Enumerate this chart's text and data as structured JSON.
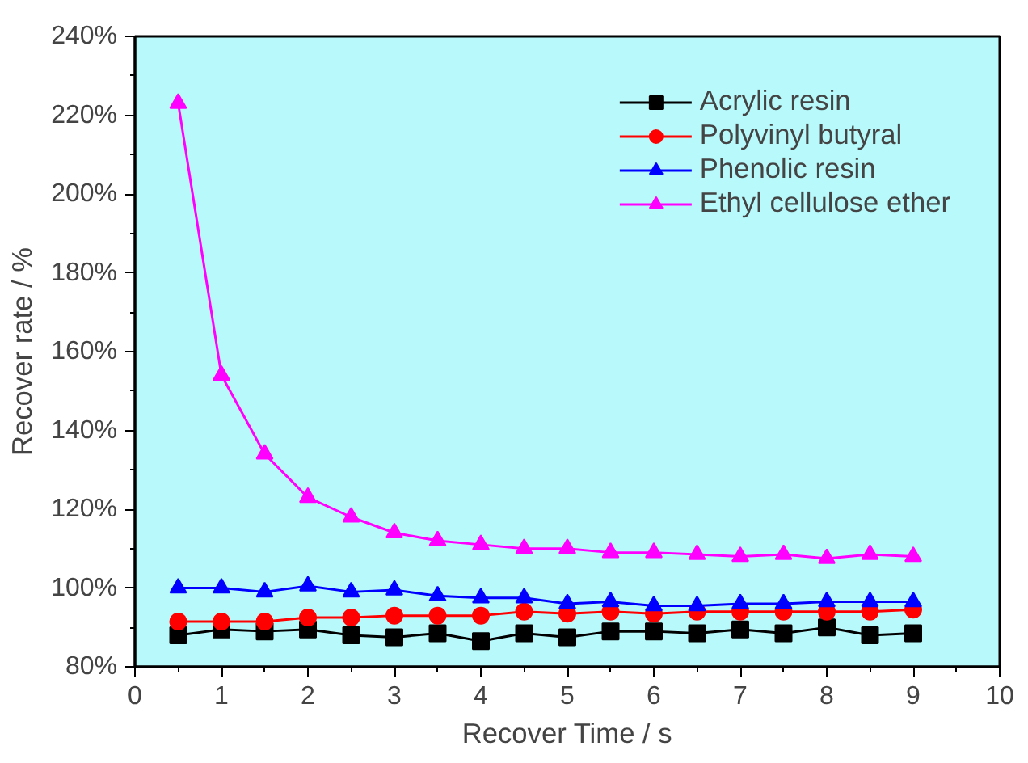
{
  "chart_data": {
    "type": "line",
    "xlabel": "Recover Time / s",
    "ylabel": "Recover rate / %",
    "x": [
      0.5,
      1,
      1.5,
      2,
      2.5,
      3,
      3.5,
      4,
      4.5,
      5,
      5.5,
      6,
      6.5,
      7,
      7.5,
      8,
      8.5,
      9
    ],
    "series": [
      {
        "name": "Acrylic resin",
        "color": "#000000",
        "marker": "square",
        "values": [
          88,
          89.5,
          89,
          89.5,
          88,
          87.5,
          88.5,
          86.5,
          88.5,
          87.5,
          89,
          89,
          88.5,
          89.5,
          88.5,
          90,
          88,
          88.5
        ]
      },
      {
        "name": "Polyvinyl butyral",
        "color": "#ff0000",
        "marker": "circle",
        "values": [
          91.5,
          91.5,
          91.5,
          92.5,
          92.5,
          93,
          93,
          93,
          94,
          93.5,
          94,
          93.5,
          94,
          94,
          94,
          94,
          94,
          94.5
        ]
      },
      {
        "name": "Phenolic resin",
        "color": "#0000ff",
        "marker": "triangle",
        "values": [
          100,
          100,
          99,
          100.5,
          99,
          99.5,
          98,
          97.5,
          97.5,
          96,
          96.5,
          95.5,
          95.5,
          96,
          96,
          96.5,
          96.5,
          96.5
        ]
      },
      {
        "name": "Ethyl cellulose ether",
        "color": "#ff00ff",
        "marker": "triangle",
        "values": [
          223,
          154,
          134,
          123,
          118,
          114,
          112,
          111,
          110,
          110,
          109,
          109,
          108.5,
          108,
          108.5,
          107.5,
          108.5,
          108
        ]
      }
    ],
    "xlim": [
      0,
      10
    ],
    "xticks": [
      0,
      1,
      2,
      3,
      4,
      5,
      6,
      7,
      8,
      9,
      10
    ],
    "ylim": [
      80,
      240
    ],
    "yticks": [
      {
        "value": 80,
        "label": "80%"
      },
      {
        "value": 100,
        "label": "100%"
      },
      {
        "value": 120,
        "label": "120%"
      },
      {
        "value": 140,
        "label": "140%"
      },
      {
        "value": 160,
        "label": "160%"
      },
      {
        "value": 180,
        "label": "180%"
      },
      {
        "value": 200,
        "label": "200%"
      },
      {
        "value": 220,
        "label": "220%"
      },
      {
        "value": 240,
        "label": "240%"
      }
    ],
    "grid": false,
    "legend": "top right",
    "line_style": "solid"
  }
}
